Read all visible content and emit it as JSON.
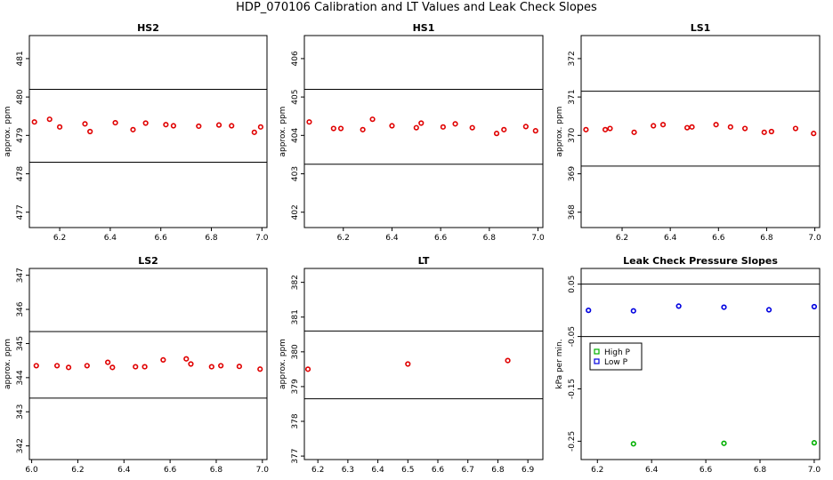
{
  "title": "HDP_070106  Calibration and LT Values and Leak Check Slopes",
  "chart_data": [
    {
      "type": "scatter",
      "title": "HS2",
      "ylabel": "approx. ppm",
      "xlim": [
        6.08,
        7.02
      ],
      "ylim": [
        476.6,
        481.6
      ],
      "xticks": [
        "6.2",
        "6.4",
        "6.6",
        "6.8",
        "7.0"
      ],
      "yticks": [
        "477",
        "478",
        "479",
        "480",
        "481"
      ],
      "hlines": [
        480.2,
        478.3
      ],
      "series": [
        {
          "color": "#e00000",
          "marker": "circle",
          "x": [
            6.1,
            6.16,
            6.2,
            6.3,
            6.32,
            6.42,
            6.49,
            6.54,
            6.62,
            6.65,
            6.75,
            6.83,
            6.88,
            6.97,
            6.995
          ],
          "y": [
            479.35,
            479.42,
            479.22,
            479.3,
            479.1,
            479.33,
            479.15,
            479.32,
            479.28,
            479.25,
            479.24,
            479.27,
            479.25,
            479.08,
            479.22
          ]
        }
      ]
    },
    {
      "type": "scatter",
      "title": "HS1",
      "ylabel": "approx. ppm",
      "xlim": [
        6.04,
        7.02
      ],
      "ylim": [
        401.6,
        406.6
      ],
      "xticks": [
        "6.2",
        "6.4",
        "6.6",
        "6.8",
        "7.0"
      ],
      "yticks": [
        "402",
        "403",
        "404",
        "405",
        "406"
      ],
      "hlines": [
        405.2,
        403.25
      ],
      "series": [
        {
          "color": "#e00000",
          "marker": "circle",
          "x": [
            6.06,
            6.16,
            6.19,
            6.28,
            6.32,
            6.4,
            6.5,
            6.52,
            6.61,
            6.66,
            6.73,
            6.83,
            6.86,
            6.95,
            6.99
          ],
          "y": [
            404.35,
            404.18,
            404.18,
            404.15,
            404.42,
            404.25,
            404.2,
            404.32,
            404.22,
            404.3,
            404.2,
            404.05,
            404.15,
            404.23,
            404.12
          ]
        }
      ]
    },
    {
      "type": "scatter",
      "title": "LS1",
      "ylabel": "approx. ppm",
      "xlim": [
        6.03,
        7.02
      ],
      "ylim": [
        367.6,
        372.6
      ],
      "xticks": [
        "6.2",
        "6.4",
        "6.6",
        "6.8",
        "7.0"
      ],
      "yticks": [
        "368",
        "369",
        "370",
        "371",
        "372"
      ],
      "hlines": [
        371.15,
        369.2
      ],
      "series": [
        {
          "color": "#e00000",
          "marker": "circle",
          "x": [
            6.05,
            6.13,
            6.15,
            6.25,
            6.33,
            6.37,
            6.47,
            6.49,
            6.59,
            6.65,
            6.71,
            6.79,
            6.82,
            6.92,
            6.995
          ],
          "y": [
            370.15,
            370.15,
            370.18,
            370.08,
            370.25,
            370.28,
            370.2,
            370.22,
            370.28,
            370.22,
            370.18,
            370.08,
            370.1,
            370.18,
            370.05
          ]
        }
      ]
    },
    {
      "type": "scatter",
      "title": "LS2",
      "ylabel": "approx. ppm",
      "xlim": [
        5.99,
        7.02
      ],
      "ylim": [
        341.6,
        347.2
      ],
      "xticks": [
        "6.0",
        "6.2",
        "6.4",
        "6.6",
        "6.8",
        "7.0"
      ],
      "yticks": [
        "342",
        "343",
        "344",
        "345",
        "346",
        "347"
      ],
      "hlines": [
        345.35,
        343.4
      ],
      "series": [
        {
          "color": "#e00000",
          "marker": "circle",
          "x": [
            6.02,
            6.11,
            6.16,
            6.24,
            6.33,
            6.35,
            6.45,
            6.49,
            6.57,
            6.67,
            6.69,
            6.78,
            6.82,
            6.9,
            6.99
          ],
          "y": [
            344.35,
            344.35,
            344.3,
            344.35,
            344.45,
            344.3,
            344.32,
            344.32,
            344.52,
            344.55,
            344.4,
            344.32,
            344.35,
            344.33,
            344.25
          ]
        }
      ]
    },
    {
      "type": "scatter",
      "title": "LT",
      "ylabel": "approx. ppm",
      "xlim": [
        6.155,
        6.95
      ],
      "ylim": [
        376.9,
        382.4
      ],
      "xticks": [
        "6.2",
        "6.3",
        "6.4",
        "6.5",
        "6.6",
        "6.7",
        "6.8",
        "6.9"
      ],
      "yticks": [
        "377",
        "378",
        "379",
        "380",
        "381",
        "382"
      ],
      "hlines": [
        380.6,
        378.65
      ],
      "series": [
        {
          "color": "#e00000",
          "marker": "circle",
          "x": [
            6.167,
            6.5,
            6.833
          ],
          "y": [
            379.5,
            379.65,
            379.75
          ]
        }
      ]
    },
    {
      "type": "scatter",
      "title": "Leak Check Pressure Slopes",
      "ylabel": "kPa per min.",
      "xlim": [
        6.14,
        7.02
      ],
      "ylim": [
        -0.285,
        0.08
      ],
      "xticks": [
        "6.2",
        "6.4",
        "6.6",
        "6.8",
        "7.0"
      ],
      "yticks": [
        "-0.25",
        "-0.15",
        "-0.05",
        "0.05"
      ],
      "hlines": [
        0.05,
        -0.05
      ],
      "legend": {
        "position": "left-middle",
        "entries": [
          {
            "name": "High P",
            "color": "#00b000"
          },
          {
            "name": "Low P",
            "color": "#0000e0"
          }
        ]
      },
      "series": [
        {
          "name": "High P",
          "color": "#00b000",
          "marker": "circle",
          "x": [
            6.333,
            6.667,
            7.0
          ],
          "y": [
            -0.255,
            -0.254,
            -0.253
          ]
        },
        {
          "name": "Low P",
          "color": "#0000e0",
          "marker": "circle",
          "x": [
            6.167,
            6.333,
            6.5,
            6.667,
            6.833,
            7.0
          ],
          "y": [
            0.0,
            -0.001,
            0.008,
            0.006,
            0.001,
            0.007
          ]
        }
      ]
    }
  ]
}
